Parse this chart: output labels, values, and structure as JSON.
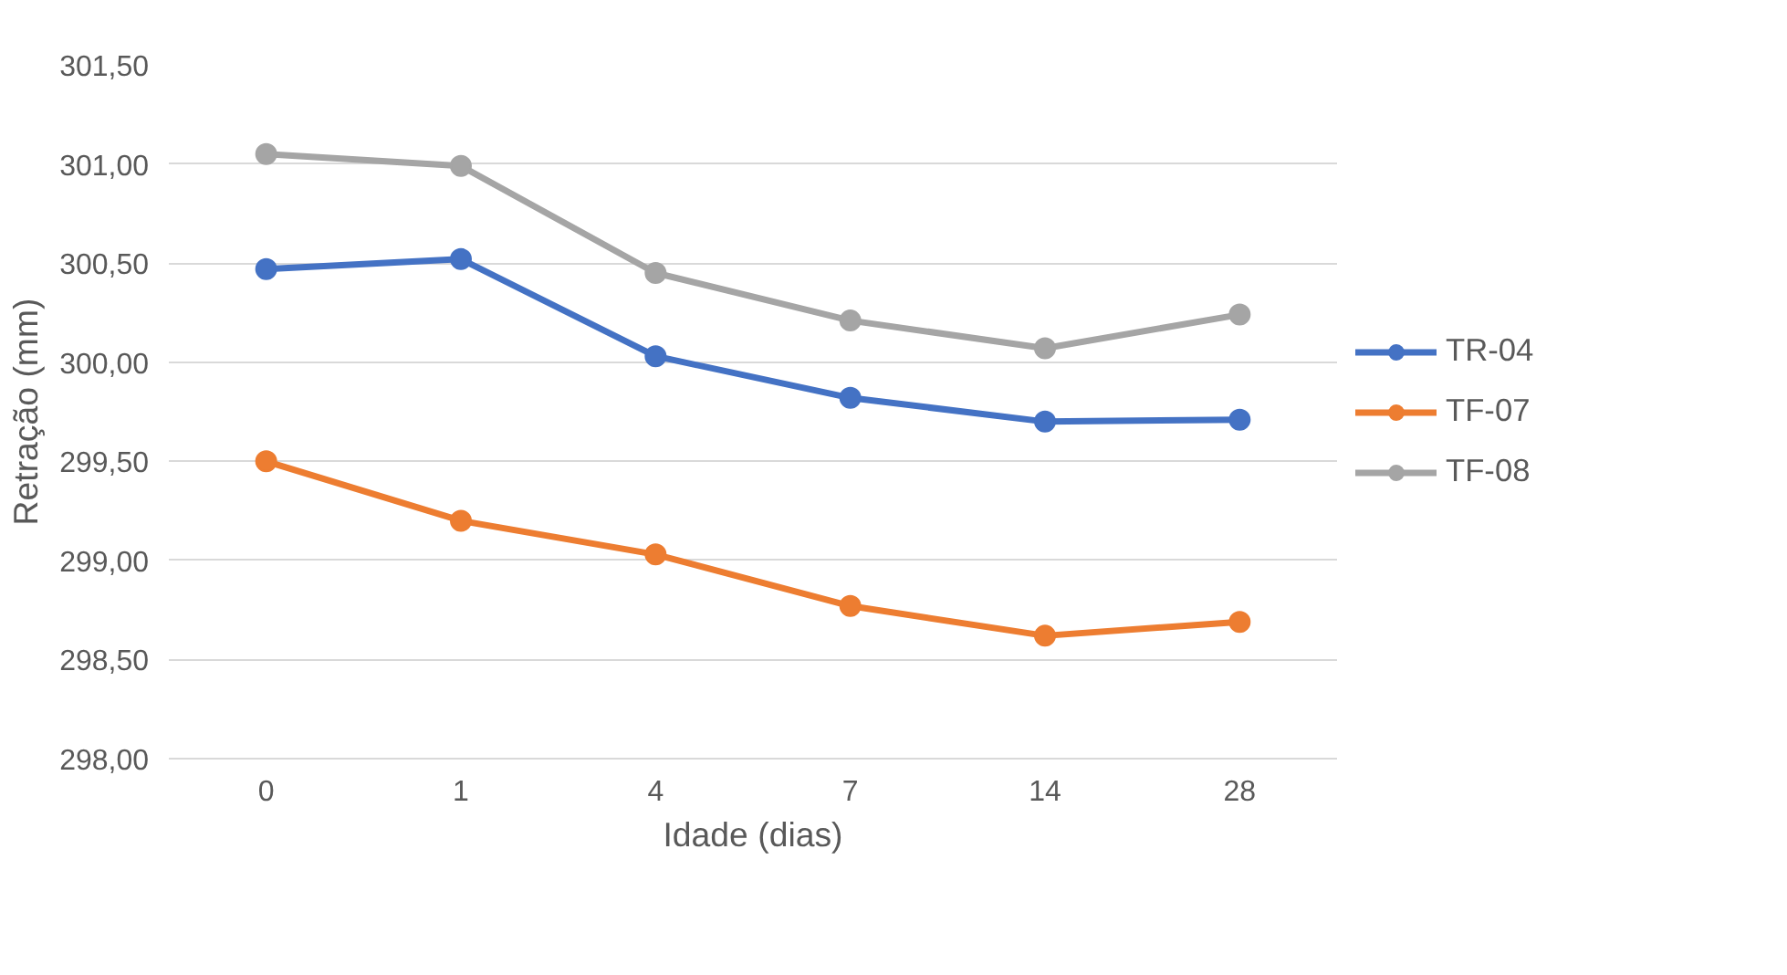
{
  "chart_data": {
    "type": "line",
    "xlabel": "Idade (dias)",
    "ylabel": "Retração (mm)",
    "categories": [
      "0",
      "1",
      "4",
      "7",
      "14",
      "28"
    ],
    "series": [
      {
        "name": "TR-04",
        "color": "#4472c4",
        "values": [
          300.47,
          300.52,
          300.03,
          299.82,
          299.7,
          299.71
        ]
      },
      {
        "name": "TF-07",
        "color": "#ed7d31",
        "values": [
          299.5,
          299.2,
          299.03,
          298.77,
          298.62,
          298.69
        ]
      },
      {
        "name": "TF-08",
        "color": "#a5a5a5",
        "values": [
          301.05,
          300.99,
          300.45,
          300.21,
          300.07,
          300.24
        ]
      }
    ],
    "ylim": [
      298.0,
      301.5
    ],
    "yticks": [
      {
        "value": 298.0,
        "label": "298,00"
      },
      {
        "value": 298.5,
        "label": "298,50"
      },
      {
        "value": 299.0,
        "label": "299,00"
      },
      {
        "value": 299.5,
        "label": "299,50"
      },
      {
        "value": 300.0,
        "label": "300,00"
      },
      {
        "value": 300.5,
        "label": "300,50"
      },
      {
        "value": 301.0,
        "label": "301,00"
      },
      {
        "value": 301.5,
        "label": "301,50"
      }
    ],
    "grid": "y",
    "legend": "right",
    "marker": "circle",
    "line_style": "solid"
  }
}
